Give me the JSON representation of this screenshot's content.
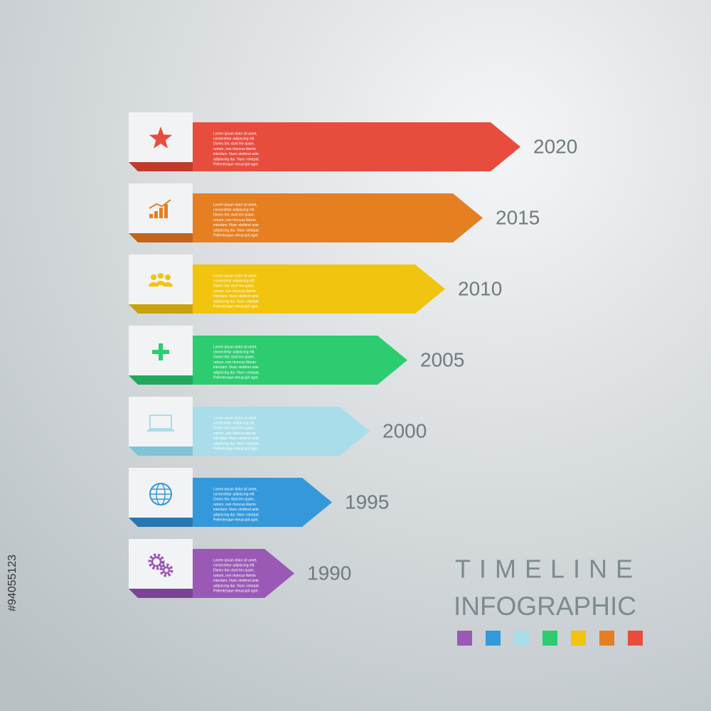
{
  "timeline": {
    "items": [
      {
        "year": "2020",
        "color": "#e84c3d",
        "dark": "#c23a2d"
      },
      {
        "year": "2015",
        "color": "#e67e22",
        "dark": "#c0651a"
      },
      {
        "year": "2010",
        "color": "#f1c40f",
        "dark": "#c9a20b"
      },
      {
        "year": "2005",
        "color": "#2ecc71",
        "dark": "#22a85a"
      },
      {
        "year": "2000",
        "color": "#a8dde9",
        "dark": "#7fc4d6"
      },
      {
        "year": "1995",
        "color": "#3498db",
        "dark": "#2678b4"
      },
      {
        "year": "1990",
        "color": "#9b59b6",
        "dark": "#7c4295"
      }
    ],
    "body_lines": [
      "Lorem ipsum dolor sit amet,",
      "consectetur adipiscing elit.",
      "Donec tinc dunt leo quam,",
      "rutrum, non rhoncus liberto",
      "interdum. Nunc eleifend ante",
      "adipiscing dui. Nunc volutpat.",
      "Pellentesque eleuscipit aget."
    ],
    "title_line1": "TIMELINE",
    "title_line2": "INFOGRAPHIC",
    "swatches": [
      "#9b59b6",
      "#3498db",
      "#a8dde9",
      "#2ecc71",
      "#f1c40f",
      "#e67e22",
      "#e84c3d"
    ],
    "stock_id": "#94055123"
  }
}
